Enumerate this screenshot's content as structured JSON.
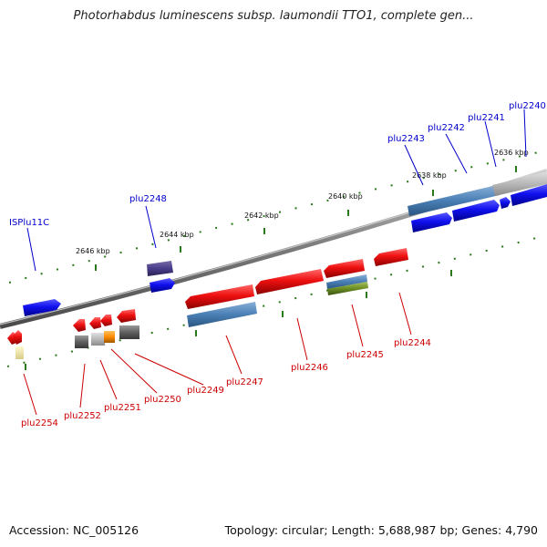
{
  "title": "Photorhabdus luminescens subsp. laumondii TTO1, complete gen...",
  "footer": {
    "accession": "Accession: NC_005126",
    "summary": "Topology: circular; Length: 5,688,987 bp; Genes: 4,790"
  },
  "scale_ticks": [
    "2646 kbp",
    "2644 kbp",
    "2642 kbp",
    "2640 kbp",
    "2638 kbp",
    "2636 kbp"
  ],
  "genes_top_labels": [
    "ISPlu11C",
    "plu2248",
    "plu2243",
    "plu2242",
    "plu2241",
    "plu2240"
  ],
  "genes_bottom_labels": [
    "plu2254",
    "plu2252",
    "plu2251",
    "plu2250",
    "plu2249",
    "plu2247",
    "plu2246",
    "plu2245",
    "plu2244"
  ],
  "colors": {
    "forward_gene": "#1010ee",
    "reverse_gene": "#ee1010",
    "backbone": "#808080",
    "tick_major": "#2a7a1a",
    "label_top": "#0000cc",
    "label_bottom": "#cc0000"
  }
}
